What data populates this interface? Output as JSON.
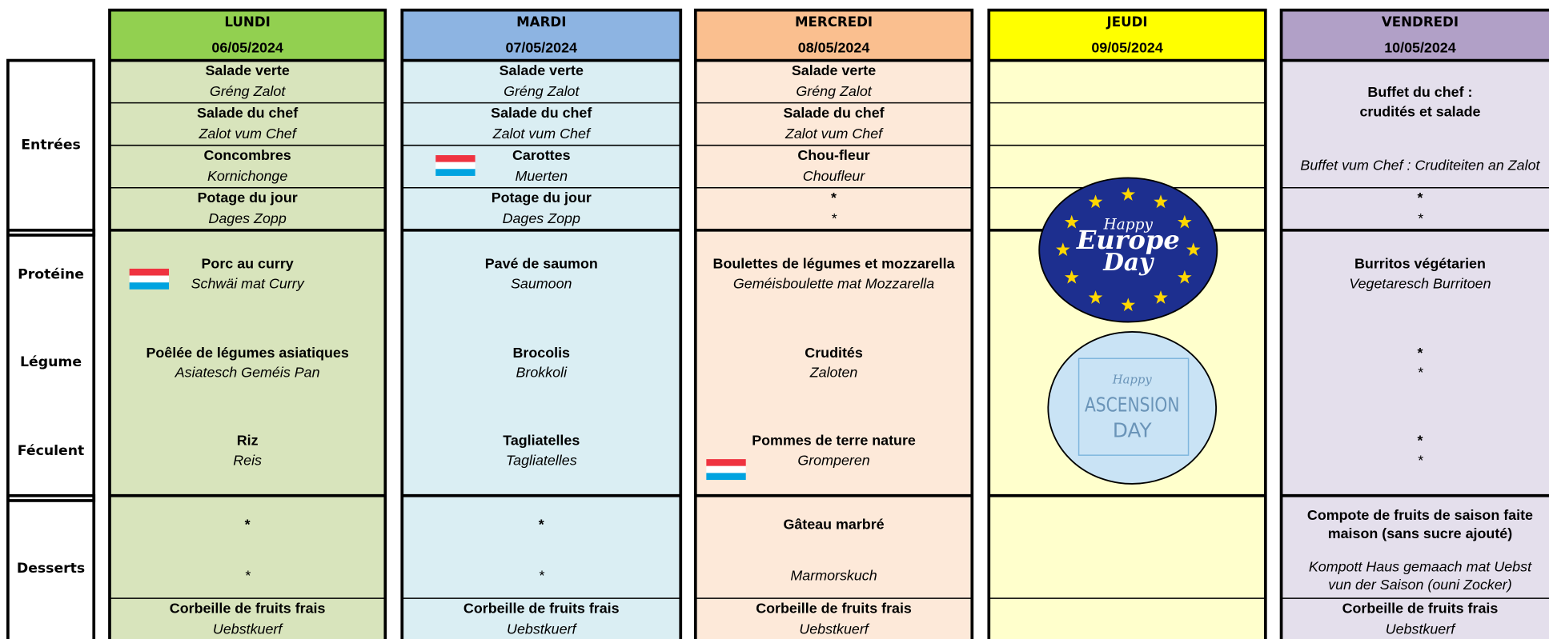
{
  "labels": [
    "Entrées",
    "Protéine",
    "Légume",
    "Féculent",
    "Desserts"
  ],
  "days": [
    {
      "name": "LUNDI",
      "date": "06/05/2024",
      "entrees": [
        {
          "fr": "Salade verte",
          "lb": "Gréng Zalot"
        },
        {
          "fr": "Salade du chef",
          "lb": "Zalot vum Chef"
        },
        {
          "fr": "Concombres",
          "lb": "Kornichonge"
        },
        {
          "fr": "Potage du jour",
          "lb": "Dages Zopp"
        }
      ],
      "proteine": {
        "fr": "Porc au curry",
        "lb": "Schwäi mat Curry"
      },
      "legume": {
        "fr": "Poêlée de légumes asiatiques",
        "lb": "Asiatesch Geméis Pan"
      },
      "feculent": {
        "fr": "Riz",
        "lb": "Reis"
      },
      "dessert": {
        "fr": "*",
        "lb": "*"
      },
      "fruit": {
        "fr": "Corbeille de fruits frais",
        "lb": "Uebstkuerf"
      }
    },
    {
      "name": "MARDI",
      "date": "07/05/2024",
      "entrees": [
        {
          "fr": "Salade verte",
          "lb": "Gréng Zalot"
        },
        {
          "fr": "Salade du chef",
          "lb": "Zalot vum Chef"
        },
        {
          "fr": "Carottes",
          "lb": "Muerten"
        },
        {
          "fr": "Potage du jour",
          "lb": "Dages Zopp"
        }
      ],
      "proteine": {
        "fr": "Pavé de saumon",
        "lb": "Saumoon"
      },
      "legume": {
        "fr": "Brocolis",
        "lb": "Brokkoli"
      },
      "feculent": {
        "fr": "Tagliatelles",
        "lb": "Tagliatelles"
      },
      "dessert": {
        "fr": "*",
        "lb": "*"
      },
      "fruit": {
        "fr": "Corbeille de fruits frais",
        "lb": "Uebstkuerf"
      }
    },
    {
      "name": "MERCREDI",
      "date": "08/05/2024",
      "entrees": [
        {
          "fr": "Salade verte",
          "lb": "Gréng Zalot"
        },
        {
          "fr": "Salade du chef",
          "lb": "Zalot vum Chef"
        },
        {
          "fr": "Chou-fleur",
          "lb": "Choufleur"
        },
        {
          "fr": "*",
          "lb": "*"
        }
      ],
      "proteine": {
        "fr": "Boulettes de légumes et mozzarella",
        "lb": "Geméisboulette mat Mozzarella"
      },
      "legume": {
        "fr": "Crudités",
        "lb": "Zaloten"
      },
      "feculent": {
        "fr": "Pommes de terre nature",
        "lb": "Gromperen"
      },
      "dessert": {
        "fr": "Gâteau marbré",
        "lb": "Marmorskuch"
      },
      "fruit": {
        "fr": "Corbeille de fruits frais",
        "lb": "Uebstkuerf"
      }
    },
    {
      "name": "JEUDI",
      "date": "09/05/2024",
      "images": [
        [
          "Happy",
          "Europe",
          "Day"
        ],
        [
          "Happy",
          "ASCENSION",
          "DAY"
        ]
      ]
    },
    {
      "name": "VENDREDI",
      "date": "10/05/2024",
      "entrees": [
        {
          "fr": [
            "Buffet du chef :",
            "crudités et salade"
          ],
          "lb": "Buffet vum Chef : Cruditeiten an Zalot"
        },
        {
          "fr": "*",
          "lb": "*"
        }
      ],
      "proteine": {
        "fr": "Burritos végétarien",
        "lb": "Vegetaresch Burritoen"
      },
      "legume": {
        "fr": "*",
        "lb": "*"
      },
      "feculent": {
        "fr": "*",
        "lb": "*"
      },
      "dessert": {
        "fr": [
          "Compote de fruits de saison faite",
          "maison (sans sucre ajouté)"
        ],
        "lb": [
          "Kompott  Haus gemaach mat Uebst",
          "vun der Saison (ouni Zocker)"
        ]
      },
      "fruit": {
        "fr": "Corbeille de fruits frais",
        "lb": "Uebstkuerf"
      }
    }
  ]
}
